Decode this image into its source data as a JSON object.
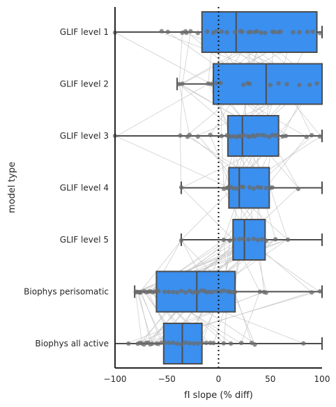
{
  "chart_data": {
    "type": "boxplot-horizontal",
    "title": "",
    "xlabel": "fI slope (% diff)",
    "ylabel": "model type",
    "xlim": [
      -100,
      100
    ],
    "xticks": [
      -100,
      -50,
      0,
      50,
      100
    ],
    "xtick_labels": [
      "−100",
      "−50",
      "0",
      "50",
      "100"
    ],
    "reference_line_x": 0,
    "box_color": "#3a8fef",
    "edge_color": "#4d4d4d",
    "point_color": "#6b6b6b",
    "line_color": "#c8c8c8",
    "categories": [
      "GLIF level 1",
      "GLIF level 2",
      "GLIF level 3",
      "GLIF level 4",
      "GLIF level 5",
      "Biophys perisomatic",
      "Biophys all active"
    ],
    "boxes": [
      {
        "name": "GLIF level 1",
        "whisker_low": -100,
        "q1": -16,
        "median": 17,
        "q3": 95,
        "whisker_high": 100
      },
      {
        "name": "GLIF level 2",
        "whisker_low": -40,
        "q1": -5,
        "median": 46,
        "q3": 100,
        "whisker_high": 100
      },
      {
        "name": "GLIF level 3",
        "whisker_low": -100,
        "q1": 9,
        "median": 23,
        "q3": 58,
        "whisker_high": 100
      },
      {
        "name": "GLIF level 4",
        "whisker_low": -36,
        "q1": 10,
        "median": 20,
        "q3": 49,
        "whisker_high": 100
      },
      {
        "name": "GLIF level 5",
        "whisker_low": -36,
        "q1": 14,
        "median": 25,
        "q3": 45,
        "whisker_high": 100
      },
      {
        "name": "Biophys perisomatic",
        "whisker_low": -81,
        "q1": -60,
        "median": -21,
        "q3": 16,
        "whisker_high": 100
      },
      {
        "name": "Biophys all active",
        "whisker_low": -100,
        "q1": -53,
        "median": -35,
        "q3": -16,
        "whisker_high": 100
      }
    ],
    "points": [
      [
        -100,
        -55,
        -49,
        -35,
        -32,
        -31,
        -27,
        -20,
        -11,
        -5,
        -2,
        3,
        8,
        16,
        21,
        23,
        29,
        31,
        35,
        37,
        41,
        45,
        52,
        54,
        58,
        60,
        72,
        78,
        86,
        91,
        98
      ],
      [
        -38,
        -35,
        -10,
        -7,
        -2,
        2,
        24,
        28,
        30,
        50,
        58,
        66,
        78,
        88,
        95
      ],
      [
        -100,
        -37,
        -30,
        -28,
        -20,
        -8,
        3,
        8,
        10,
        12,
        15,
        18,
        20,
        22,
        24,
        28,
        30,
        33,
        35,
        38,
        42,
        45,
        49,
        52,
        55,
        57,
        62,
        65,
        85,
        90,
        98
      ],
      [
        -36,
        5,
        8,
        10,
        12,
        15,
        18,
        22,
        24,
        30,
        34,
        38,
        41,
        46,
        50,
        52,
        77
      ],
      [
        -36,
        5,
        11,
        15,
        20,
        24,
        29,
        34,
        38,
        42,
        46,
        55,
        67
      ],
      [
        -80,
        -79,
        -77,
        -76,
        -75,
        -72,
        -70,
        -68,
        -66,
        -64,
        -62,
        -60,
        -58,
        -52,
        -48,
        -44,
        -40,
        -36,
        -32,
        -28,
        -25,
        -22,
        -20,
        -17,
        -14,
        -12,
        -9,
        -6,
        -2,
        2,
        5,
        9,
        11,
        14,
        16,
        40,
        44,
        46,
        90,
        98
      ],
      [
        -87,
        -78,
        -76,
        -74,
        -72,
        -70,
        -68,
        -66,
        -64,
        -60,
        -58,
        -55,
        -52,
        -48,
        -44,
        -40,
        -36,
        -32,
        -28,
        -24,
        -20,
        -16,
        -12,
        -8,
        -5,
        5,
        12,
        22,
        32,
        35,
        82
      ]
    ]
  }
}
